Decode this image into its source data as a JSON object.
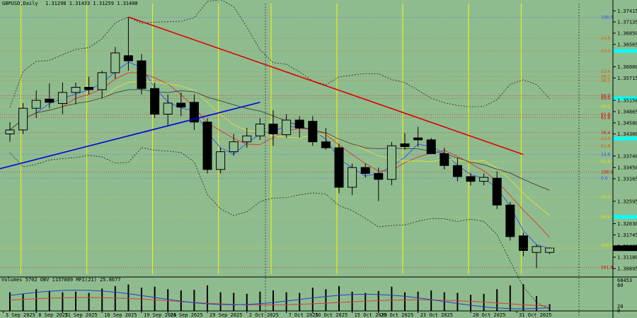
{
  "header": {
    "symbol": "GBPUSD,Daily",
    "ohlc": "1.31298 1.31433 1.31259 1.31408",
    "indicators": "Volumes 5702  OBV 1157889  MFI(21) 25.8677"
  },
  "colors": {
    "background": "#8fbc8f",
    "bull_candle": "#8fbc8f",
    "bear_candle": "#000000",
    "trend_red": "#e00000",
    "trend_blue": "#0000dd",
    "session_line": "#ffff00",
    "highlight": "#00ffff"
  },
  "chart_data": {
    "type": "candlestick",
    "price_ticks": [
      "1.37415",
      "1.37135",
      "1.36850",
      "1.36565",
      "1.36000",
      "1.35715",
      "1.35150",
      "1.34865",
      "1.34580",
      "1.34300",
      "1.33740",
      "1.33450",
      "1.33165",
      "1.32595",
      "1.32030",
      "1.31745",
      "1.31460",
      "1.31180",
      "1.30895"
    ],
    "current_price": "1.31408",
    "osc_ticks": [
      "68453",
      "80",
      "20",
      "0"
    ],
    "fib_labels": [
      {
        "text": "100.0",
        "price": 1.3725,
        "color": "#4040ff"
      },
      {
        "text": "14.6",
        "price": 1.3672,
        "color": "#e06000"
      },
      {
        "text": "23.6",
        "price": 1.364,
        "color": "#e06000"
      },
      {
        "text": "23.6",
        "price": 1.3588,
        "color": "#e06000"
      },
      {
        "text": "38.2",
        "price": 1.3575,
        "color": "#e06000"
      },
      {
        "text": "38.2",
        "price": 1.3565,
        "color": "#e06000"
      },
      {
        "text": "50.0",
        "price": 1.3527,
        "color": "#e00000"
      },
      {
        "text": "50.0",
        "price": 1.352,
        "color": "#e00000"
      },
      {
        "text": "38.2",
        "price": 1.35,
        "color": "#e0e000"
      },
      {
        "text": "61.8",
        "price": 1.3479,
        "color": "#e00000"
      },
      {
        "text": "61.8",
        "price": 1.3471,
        "color": "#e00000"
      },
      {
        "text": "76.4",
        "price": 1.3433,
        "color": "#e00000"
      },
      {
        "text": "23.6",
        "price": 1.3418,
        "color": "#e06000"
      },
      {
        "text": "61.8",
        "price": 1.34,
        "color": "#e06000"
      },
      {
        "text": "14.6",
        "price": 1.3378,
        "color": "#4040ff"
      },
      {
        "text": "61.8",
        "price": 1.336,
        "color": "#e0e000"
      },
      {
        "text": "0.0",
        "price": 1.3318,
        "color": "#4040ff"
      },
      {
        "text": "100.0",
        "price": 1.3333,
        "color": "#e00000"
      },
      {
        "text": "76.4",
        "price": 1.327,
        "color": "#e0e000"
      },
      {
        "text": "90.4",
        "price": 1.322,
        "color": "#e0e000"
      },
      {
        "text": "100.0",
        "price": 1.3148,
        "color": "#e0e000"
      },
      {
        "text": "161.8",
        "price": 1.3092,
        "color": "#e00000"
      }
    ],
    "date_labels": [
      "3 Sep 2025",
      "8 Sep 2025",
      "11 Sep 2025",
      "16 Sep 2025",
      "19 Sep 2025",
      "24 Sep 2025",
      "29 Sep 2025",
      "2 Oct 2025",
      "7 Oct 2025",
      "10 Oct 2025",
      "15 Oct 2025",
      "20 Oct 2025",
      "23 Oct 2025",
      "28 Oct 2025",
      "31 Oct 2025"
    ],
    "candles": [
      {
        "o": 1.343,
        "h": 1.346,
        "l": 1.341,
        "c": 1.344
      },
      {
        "o": 1.344,
        "h": 1.3508,
        "l": 1.343,
        "c": 1.3495
      },
      {
        "o": 1.3495,
        "h": 1.354,
        "l": 1.347,
        "c": 1.3515
      },
      {
        "o": 1.3518,
        "h": 1.3558,
        "l": 1.3495,
        "c": 1.351
      },
      {
        "o": 1.3507,
        "h": 1.356,
        "l": 1.348,
        "c": 1.3535
      },
      {
        "o": 1.3535,
        "h": 1.356,
        "l": 1.3505,
        "c": 1.3548
      },
      {
        "o": 1.3548,
        "h": 1.3575,
        "l": 1.353,
        "c": 1.3542
      },
      {
        "o": 1.3542,
        "h": 1.359,
        "l": 1.352,
        "c": 1.3585
      },
      {
        "o": 1.3585,
        "h": 1.365,
        "l": 1.357,
        "c": 1.3635
      },
      {
        "o": 1.3628,
        "h": 1.3726,
        "l": 1.359,
        "c": 1.3615
      },
      {
        "o": 1.3615,
        "h": 1.3632,
        "l": 1.353,
        "c": 1.3545
      },
      {
        "o": 1.3545,
        "h": 1.356,
        "l": 1.347,
        "c": 1.348
      },
      {
        "o": 1.348,
        "h": 1.353,
        "l": 1.345,
        "c": 1.3508
      },
      {
        "o": 1.3508,
        "h": 1.3535,
        "l": 1.3475,
        "c": 1.3498
      },
      {
        "o": 1.351,
        "h": 1.353,
        "l": 1.344,
        "c": 1.346
      },
      {
        "o": 1.346,
        "h": 1.347,
        "l": 1.333,
        "c": 1.334
      },
      {
        "o": 1.334,
        "h": 1.3395,
        "l": 1.333,
        "c": 1.3385
      },
      {
        "o": 1.3385,
        "h": 1.343,
        "l": 1.3375,
        "c": 1.341
      },
      {
        "o": 1.341,
        "h": 1.3445,
        "l": 1.3395,
        "c": 1.3425
      },
      {
        "o": 1.3425,
        "h": 1.347,
        "l": 1.3415,
        "c": 1.3455
      },
      {
        "o": 1.3455,
        "h": 1.349,
        "l": 1.34,
        "c": 1.343
      },
      {
        "o": 1.3428,
        "h": 1.348,
        "l": 1.342,
        "c": 1.3465
      },
      {
        "o": 1.3465,
        "h": 1.3475,
        "l": 1.342,
        "c": 1.3445
      },
      {
        "o": 1.3462,
        "h": 1.3475,
        "l": 1.34,
        "c": 1.341
      },
      {
        "o": 1.341,
        "h": 1.3445,
        "l": 1.339,
        "c": 1.3395
      },
      {
        "o": 1.3395,
        "h": 1.3405,
        "l": 1.328,
        "c": 1.3295
      },
      {
        "o": 1.3295,
        "h": 1.3355,
        "l": 1.3275,
        "c": 1.3345
      },
      {
        "o": 1.3345,
        "h": 1.3355,
        "l": 1.332,
        "c": 1.333
      },
      {
        "o": 1.333,
        "h": 1.3345,
        "l": 1.326,
        "c": 1.3315
      },
      {
        "o": 1.3315,
        "h": 1.341,
        "l": 1.33,
        "c": 1.34
      },
      {
        "o": 1.3405,
        "h": 1.3432,
        "l": 1.339,
        "c": 1.3398
      },
      {
        "o": 1.342,
        "h": 1.3448,
        "l": 1.3398,
        "c": 1.3415
      },
      {
        "o": 1.3415,
        "h": 1.342,
        "l": 1.338,
        "c": 1.338
      },
      {
        "o": 1.338,
        "h": 1.3395,
        "l": 1.334,
        "c": 1.335
      },
      {
        "o": 1.335,
        "h": 1.337,
        "l": 1.331,
        "c": 1.3322
      },
      {
        "o": 1.3322,
        "h": 1.333,
        "l": 1.33,
        "c": 1.331
      },
      {
        "o": 1.331,
        "h": 1.333,
        "l": 1.33,
        "c": 1.332
      },
      {
        "o": 1.3318,
        "h": 1.3335,
        "l": 1.324,
        "c": 1.325
      },
      {
        "o": 1.325,
        "h": 1.3258,
        "l": 1.316,
        "c": 1.317
      },
      {
        "o": 1.3172,
        "h": 1.318,
        "l": 1.312,
        "c": 1.3135
      },
      {
        "o": 1.313,
        "h": 1.315,
        "l": 1.309,
        "c": 1.3145
      },
      {
        "o": 1.313,
        "h": 1.3143,
        "l": 1.3126,
        "c": 1.3141
      }
    ],
    "volumes": [
      60,
      55,
      70,
      65,
      60,
      62,
      58,
      72,
      80,
      85,
      75,
      78,
      70,
      66,
      68,
      82,
      60,
      58,
      55,
      62,
      66,
      60,
      58,
      75,
      70,
      80,
      62,
      58,
      64,
      78,
      60,
      62,
      66,
      60,
      58,
      52,
      55,
      70,
      82,
      86,
      48,
      22
    ],
    "trend_lines": [
      {
        "color": "#e00000",
        "from": {
          "bar": 9,
          "price": 1.3726
        },
        "to": {
          "bar": 39,
          "price": 1.3378
        }
      },
      {
        "color": "#0000dd",
        "from": {
          "bar": -1,
          "price": 1.334
        },
        "to": {
          "bar": 19,
          "price": 1.351
        }
      }
    ],
    "session_lines_bars": [
      1,
      6,
      11,
      16,
      20,
      25,
      30,
      35,
      39
    ]
  }
}
